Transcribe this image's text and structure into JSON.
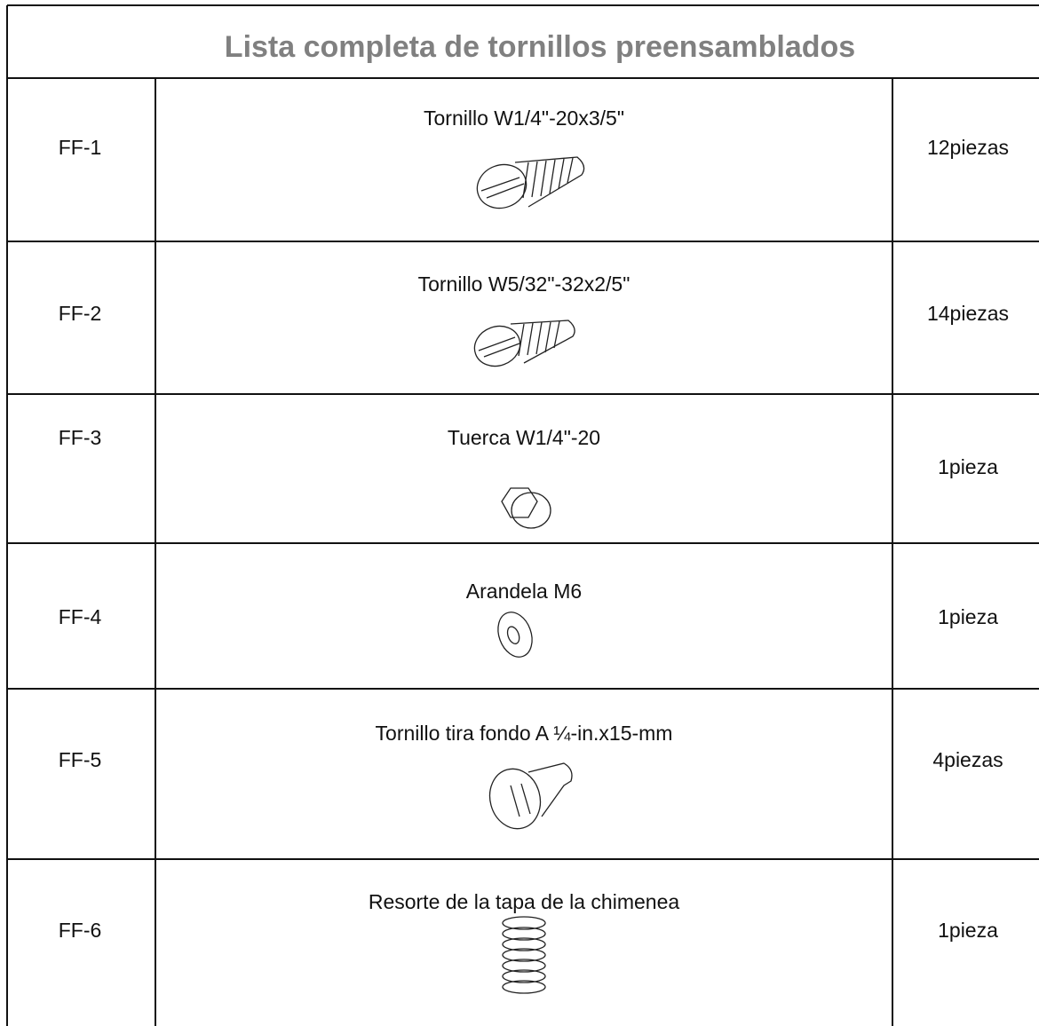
{
  "table": {
    "title": "Lista completa de tornillos preensamblados",
    "rows": [
      [
        "FF-1",
        "Tornillo W1/4\"-20x3/5\"",
        "12piezas"
      ],
      [
        "FF-2",
        "Tornillo W5/32\"-32x2/5\"",
        "14piezas"
      ],
      [
        "FF-3",
        "Tuerca W1/4\"-20",
        "1pieza"
      ],
      [
        "FF-4",
        "Arandela M6",
        "1pieza"
      ],
      [
        "FF-5",
        "Tornillo tira fondo A ¼-in.x15-mm",
        "4piezas"
      ],
      [
        "FF-6",
        "Resorte de la tapa de la chimenea",
        "1pieza"
      ]
    ]
  }
}
